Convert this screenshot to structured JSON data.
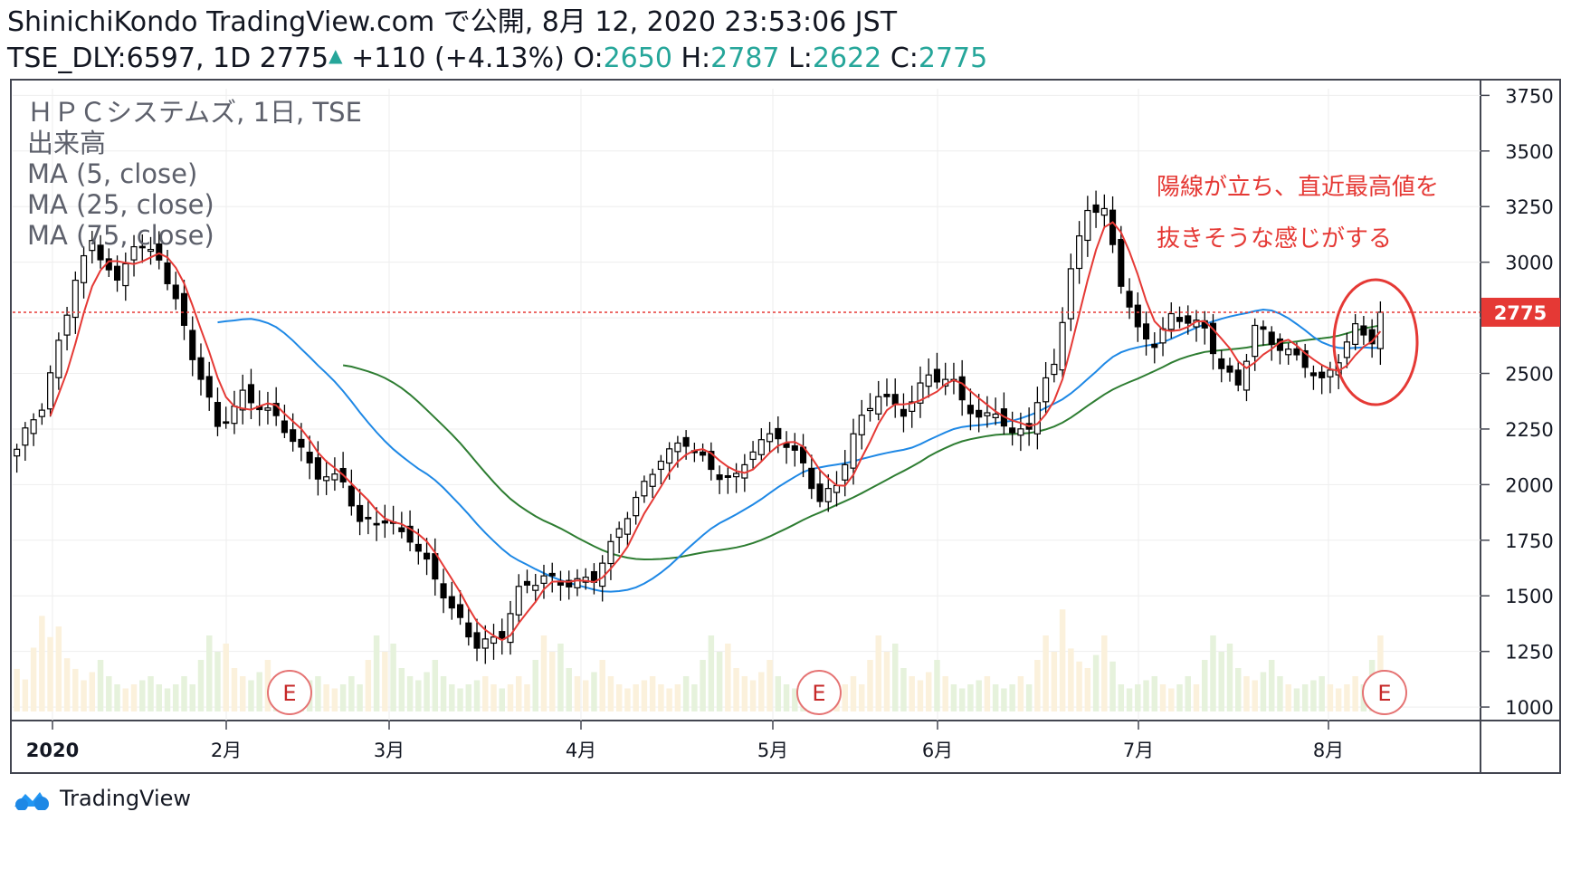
{
  "header": {
    "line1": "ShinichiKondo TradingView.com で公開, 8月 12, 2020 23:53:06 JST",
    "symbol": "TSE_DLY:6597, 1D",
    "last": "2775",
    "change": "+110 (+4.13%)",
    "o_label": "O:",
    "o_value": "2650",
    "h_label": "H:",
    "h_value": "2787",
    "l_label": "L:",
    "l_value": "2622",
    "c_label": "C:",
    "c_value": "2775"
  },
  "legend": [
    "ＨＰＣシステムズ, 1日, TSE",
    "出来高",
    "MA (5, close)",
    "MA (25, close)",
    "MA (75, close)"
  ],
  "annotation": {
    "line1": "陽線が立ち、直近最高値を",
    "line2": "抜きそうな感じがする"
  },
  "earnings_marker": "E",
  "footer": {
    "brand": "TradingView"
  },
  "colors": {
    "ma5": "#e53935",
    "ma25": "#1e88e5",
    "ma75": "#2e7d32",
    "price_line": "#e53935",
    "volume": "#fbf1dc",
    "volume_up": "#e6f2dc",
    "annotation": "#e53935",
    "grid": "#eeeeee"
  },
  "chart_data": {
    "type": "candlestick",
    "title": "ＨＰＣシステムズ, 1日, TSE",
    "y_ticks": [
      1000,
      1250,
      1500,
      1750,
      2000,
      2250,
      2500,
      2750,
      3000,
      3250,
      3500,
      3750
    ],
    "ylim": [
      980,
      3780
    ],
    "x_tick_labels": [
      "2020",
      "2月",
      "3月",
      "4月",
      "5月",
      "6月",
      "7月",
      "8月"
    ],
    "last_price": 2775,
    "last_price_label": "2775",
    "bar_count": 150,
    "tick_bars": [
      0,
      20,
      39,
      61,
      83,
      103,
      127,
      149
    ],
    "earnings_bars": [
      32,
      94,
      161
    ],
    "ohlc_anchor": [
      [
        0,
        2140
      ],
      [
        3,
        2350
      ],
      [
        5,
        2650
      ],
      [
        7,
        2950
      ],
      [
        9,
        3080
      ],
      [
        12,
        2880
      ],
      [
        14,
        3100
      ],
      [
        17,
        3040
      ],
      [
        19,
        2810
      ],
      [
        21,
        2560
      ],
      [
        24,
        2270
      ],
      [
        27,
        2420
      ],
      [
        30,
        2310
      ],
      [
        33,
        2200
      ],
      [
        36,
        2070
      ],
      [
        39,
        2010
      ],
      [
        41,
        1800
      ],
      [
        44,
        1850
      ],
      [
        47,
        1780
      ],
      [
        50,
        1560
      ],
      [
        52,
        1420
      ],
      [
        55,
        1300
      ],
      [
        58,
        1330
      ],
      [
        60,
        1500
      ],
      [
        63,
        1580
      ],
      [
        66,
        1580
      ],
      [
        69,
        1570
      ],
      [
        71,
        1700
      ],
      [
        74,
        1950
      ],
      [
        77,
        2140
      ],
      [
        80,
        2170
      ],
      [
        83,
        2060
      ],
      [
        86,
        2050
      ],
      [
        88,
        2170
      ],
      [
        91,
        2200
      ],
      [
        94,
        2100
      ],
      [
        96,
        1950
      ],
      [
        98,
        2000
      ],
      [
        100,
        2200
      ],
      [
        103,
        2410
      ],
      [
        106,
        2350
      ],
      [
        109,
        2480
      ],
      [
        112,
        2430
      ],
      [
        115,
        2310
      ],
      [
        117,
        2350
      ],
      [
        119,
        2200
      ],
      [
        121,
        2250
      ],
      [
        124,
        2560
      ],
      [
        126,
        2980
      ],
      [
        128,
        3250
      ],
      [
        130,
        3200
      ],
      [
        132,
        2900
      ],
      [
        134,
        2700
      ],
      [
        136,
        2660
      ],
      [
        138,
        2750
      ],
      [
        140,
        2720
      ],
      [
        142,
        2680
      ],
      [
        144,
        2540
      ],
      [
        146,
        2470
      ],
      [
        148,
        2710
      ],
      [
        150,
        2620
      ],
      [
        152,
        2580
      ],
      [
        154,
        2560
      ],
      [
        156,
        2480
      ],
      [
        158,
        2570
      ],
      [
        160,
        2680
      ],
      [
        162,
        2640
      ],
      [
        163,
        2775
      ]
    ],
    "volume_relative": [
      0.3,
      0.2,
      0.5,
      0.8,
      0.6,
      0.7,
      0.4,
      0.3,
      0.25,
      0.35,
      0.5,
      0.3,
      0.2,
      0.15,
      0.2,
      0.25,
      0.3,
      0.2,
      0.15,
      0.2
    ]
  }
}
